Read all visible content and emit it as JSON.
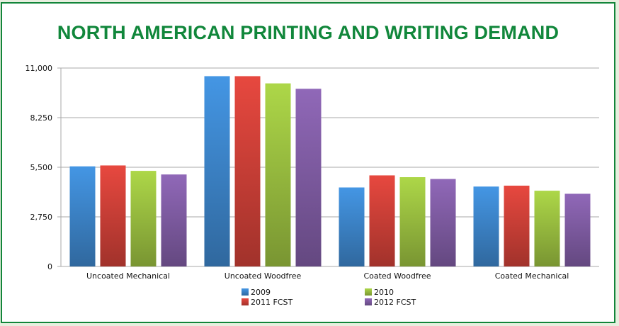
{
  "chart_data": {
    "type": "bar",
    "title": "NORTH AMERICAN PRINTING AND WRITING DEMAND",
    "categories": [
      "Uncoated Mechanical",
      "Uncoated Woodfree",
      "Coated Woodfree",
      "Coated Mechanical"
    ],
    "series": [
      {
        "name": "2009",
        "values": [
          5550,
          10550,
          4380,
          4430
        ],
        "color": "#3a7fc1"
      },
      {
        "name": "2011 FCST",
        "values": [
          5600,
          10550,
          5050,
          4480
        ],
        "color": "#c43d35"
      },
      {
        "name": "2010",
        "values": [
          5300,
          10150,
          4950,
          4200
        ],
        "color": "#93b63d"
      },
      {
        "name": "2012 FCST",
        "values": [
          5100,
          9850,
          4850,
          4030
        ],
        "color": "#7a589c"
      }
    ],
    "ylim": [
      0,
      11000
    ],
    "yticks": [
      "0",
      "2,750",
      "5,500",
      "8,250",
      "11,000"
    ],
    "ytick_values": [
      0,
      2750,
      5500,
      8250,
      11000
    ],
    "grid": true,
    "legend_position": "bottom"
  }
}
